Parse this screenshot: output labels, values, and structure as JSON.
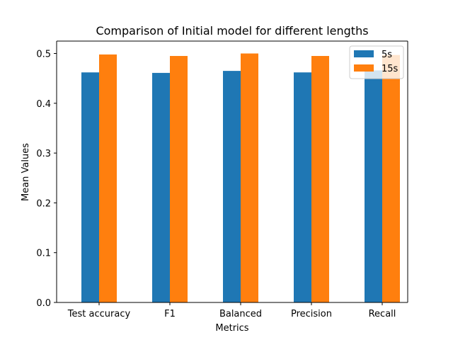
{
  "chart_data": {
    "type": "bar",
    "title": "Comparison of Initial model for different lengths",
    "xlabel": "Metrics",
    "ylabel": "Mean Values",
    "categories": [
      "Test accuracy",
      "F1",
      "Balanced",
      "Precision",
      "Recall"
    ],
    "series": [
      {
        "name": "5s",
        "color": "#1f77b4",
        "values": [
          0.462,
          0.461,
          0.465,
          0.462,
          0.466
        ]
      },
      {
        "name": "15s",
        "color": "#ff7f0e",
        "values": [
          0.498,
          0.495,
          0.5,
          0.495,
          0.497
        ]
      }
    ],
    "ylim": [
      0,
      0.5
    ],
    "yticks": [
      "0.0",
      "0.1",
      "0.2",
      "0.3",
      "0.4",
      "0.5"
    ],
    "grid": false,
    "legend_position": "top-right"
  }
}
